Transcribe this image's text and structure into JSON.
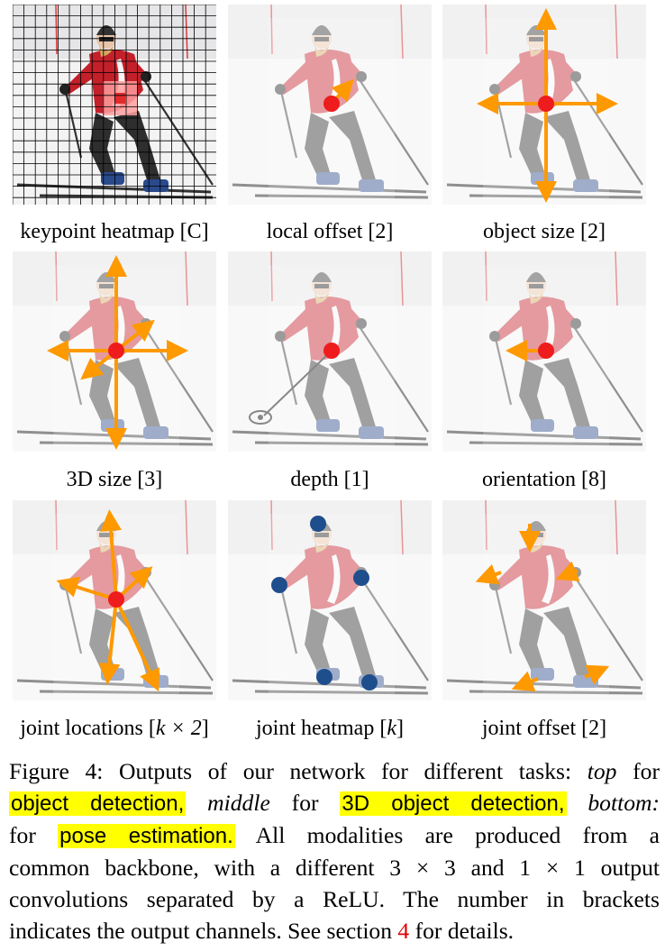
{
  "panels": [
    {
      "id": "keypoint-heatmap",
      "label": "keypoint heatmap [C]",
      "variant": "grid"
    },
    {
      "id": "local-offset",
      "label": "local offset [2]",
      "variant": "offset"
    },
    {
      "id": "object-size",
      "label": "object size [2]",
      "variant": "size"
    },
    {
      "id": "3d-size",
      "label": "3D size [3]",
      "variant": "size3d"
    },
    {
      "id": "depth",
      "label": "depth [1]",
      "variant": "depth"
    },
    {
      "id": "orientation",
      "label": "orientation [8]",
      "variant": "orientation"
    },
    {
      "id": "joint-locations",
      "label": "joint locations [",
      "label_math": "k × 2",
      "label_end": "]",
      "variant": "joints"
    },
    {
      "id": "joint-heatmap",
      "label": "joint heatmap [",
      "label_math": "k",
      "label_end": "]",
      "variant": "jointheat"
    },
    {
      "id": "joint-offset",
      "label": "joint offset [2]",
      "variant": "jointoffset"
    }
  ],
  "colors": {
    "arrow": "#ff9900",
    "center": "#ee1c1c",
    "joint": "#1f4e8c",
    "jacket": "#c4202a",
    "pants": "#2e2e2e",
    "snow": "#eeeeee"
  },
  "caption": {
    "line1_a": "Figure 4: Outputs of our network for different tasks: ",
    "top": "top",
    "line1_b": " for",
    "hl1": "object detection,",
    "middle": "middle",
    "for_word": " for ",
    "hl2": "3D object detection,",
    "bottom": "bottom:",
    "line3_a": "for ",
    "hl3": "pose estimation.",
    "line3_b": " All modalities are produced from a",
    "line4": "common backbone, with a different 3 × 3 and 1 × 1 output",
    "line5": "convolutions separated by a ReLU. The number in brackets",
    "line6_a": "indicates the output channels. See section ",
    "section_ref": "4",
    "line6_b": " for details."
  }
}
